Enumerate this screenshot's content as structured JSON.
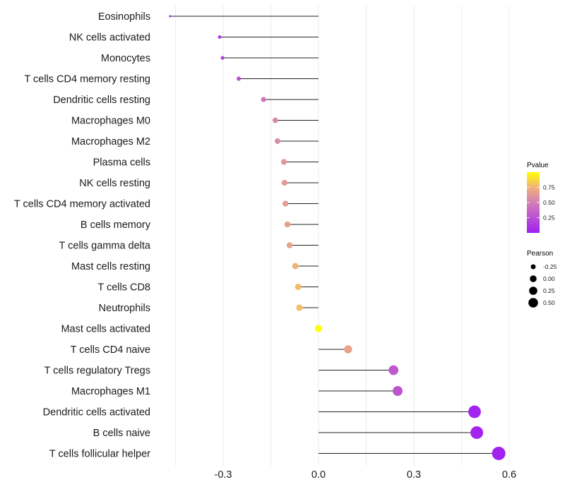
{
  "chart_data": {
    "type": "lollipop",
    "title": "",
    "xlabel": "",
    "ylabel": "",
    "xlim": [
      -0.49,
      0.62
    ],
    "xticks": [
      -0.3,
      0.0,
      0.3,
      0.6
    ],
    "xtick_labels": [
      "-0.3",
      "0.0",
      "0.3",
      "0.6"
    ],
    "grid": true,
    "categories": [
      "Eosinophils",
      "NK cells activated",
      "Monocytes",
      "T cells CD4 memory resting",
      "Dendritic cells resting",
      "Macrophages M0",
      "Macrophages M2",
      "Plasma cells",
      "NK cells resting",
      "T cells CD4 memory activated",
      "B cells memory",
      "T cells gamma delta",
      "Mast cells resting",
      "T cells CD8",
      "Neutrophils",
      "Mast cells activated",
      "T cells CD4 naive",
      "T cells regulatory  Tregs ",
      "Macrophages M1",
      "Dendritic cells activated",
      "B cells naive",
      "T cells follicular helper"
    ],
    "pearson": [
      -0.467,
      -0.311,
      -0.302,
      -0.251,
      -0.173,
      -0.136,
      -0.129,
      -0.109,
      -0.107,
      -0.104,
      -0.098,
      -0.091,
      -0.073,
      -0.064,
      -0.06,
      0.0,
      0.093,
      0.236,
      0.249,
      0.491,
      0.498,
      0.567
    ],
    "pvalue": [
      0.03,
      0.15,
      0.16,
      0.26,
      0.45,
      0.55,
      0.57,
      0.62,
      0.63,
      0.64,
      0.66,
      0.68,
      0.75,
      0.78,
      0.79,
      1.0,
      0.68,
      0.3,
      0.28,
      0.02,
      0.02,
      0.01
    ],
    "legend": {
      "color": {
        "title": "Pvalue",
        "ticks": [
          "0.25",
          "0.50",
          "0.75"
        ],
        "tick_values": [
          0.25,
          0.5,
          0.75
        ],
        "range": [
          0.0,
          1.0
        ],
        "low_color": "#a020f0",
        "mid_color": "#d47fb5",
        "high_color": "#ffff00"
      },
      "size": {
        "title": "Pearson",
        "labels": [
          "-0.25",
          "0.00",
          "0.25",
          "0.50"
        ]
      },
      "placement": "right"
    }
  }
}
